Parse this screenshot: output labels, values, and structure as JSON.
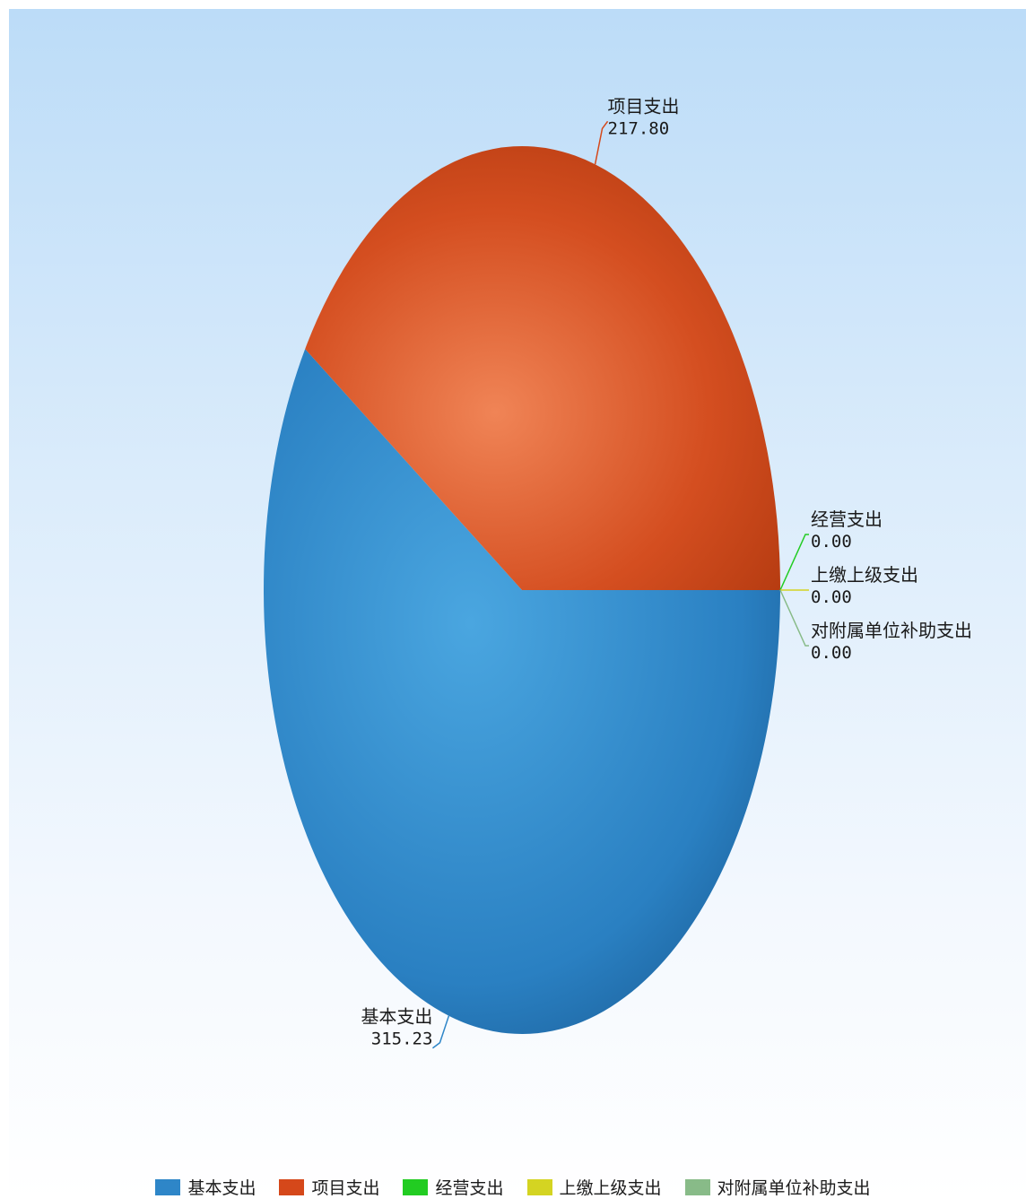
{
  "chart_data": {
    "type": "pie",
    "series": [
      {
        "name": "基本支出",
        "value": 315.23,
        "value_label": "315.23",
        "color": "#2e86c8"
      },
      {
        "name": "项目支出",
        "value": 217.8,
        "value_label": "217.80",
        "color": "#d5481a"
      },
      {
        "name": "经营支出",
        "value": 0.0,
        "value_label": "0.00",
        "color": "#22cc22"
      },
      {
        "name": "上缴上级支出",
        "value": 0.0,
        "value_label": "0.00",
        "color": "#d4d422"
      },
      {
        "name": "对附属单位补助支出",
        "value": 0.0,
        "value_label": "0.00",
        "color": "#88bb88"
      }
    ],
    "legend_position": "bottom"
  }
}
